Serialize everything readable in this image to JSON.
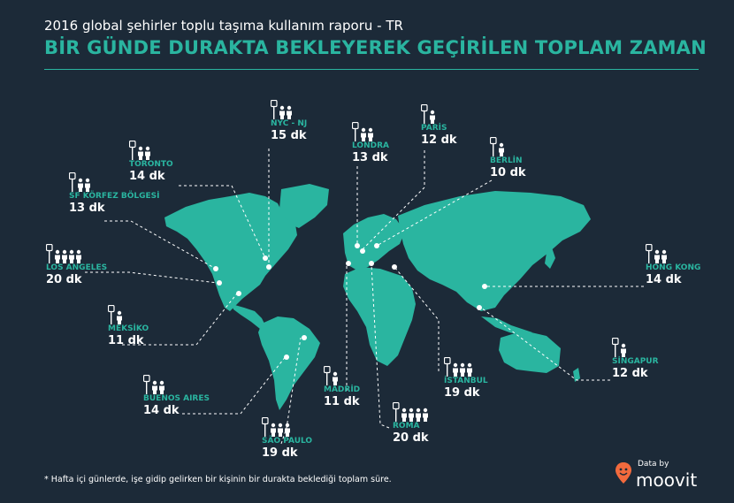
{
  "header": {
    "subtitle": "2016 global şehirler toplu taşıma kullanım raporu - TR",
    "title": "BİR GÜNDE DURAKTA BEKLEYEREK GEÇİRİLEN TOPLAM ZAMAN"
  },
  "colors": {
    "background": "#1c2a38",
    "accent": "#2ab5a0",
    "text": "#ffffff"
  },
  "cities": [
    {
      "id": "nyc",
      "name": "NYC - NJ",
      "time": "15 dk",
      "people": 2
    },
    {
      "id": "londra",
      "name": "LONDRA",
      "time": "13 dk",
      "people": 2
    },
    {
      "id": "paris",
      "name": "PARİS",
      "time": "12 dk",
      "people": 1
    },
    {
      "id": "berlin",
      "name": "BERLİN",
      "time": "10 dk",
      "people": 1
    },
    {
      "id": "toronto",
      "name": "TORONTO",
      "time": "14 dk",
      "people": 2
    },
    {
      "id": "sf",
      "name": "SF KÖRFEZ BÖLGESİ",
      "time": "13 dk",
      "people": 2
    },
    {
      "id": "la",
      "name": "LOS ANGELES",
      "time": "20 dk",
      "people": 4
    },
    {
      "id": "meksiko",
      "name": "MEKSİKO",
      "time": "11 dk",
      "people": 1
    },
    {
      "id": "buenos",
      "name": "BUENOS AIRES",
      "time": "14 dk",
      "people": 2
    },
    {
      "id": "saopaulo",
      "name": "SÃO PAULO",
      "time": "19 dk",
      "people": 3
    },
    {
      "id": "madrid",
      "name": "MADRİD",
      "time": "11 dk",
      "people": 1
    },
    {
      "id": "roma",
      "name": "ROMA",
      "time": "20 dk",
      "people": 4
    },
    {
      "id": "istanbul",
      "name": "İSTANBUL",
      "time": "19 dk",
      "people": 3
    },
    {
      "id": "hongkong",
      "name": "HONG KONG",
      "time": "14 dk",
      "people": 2
    },
    {
      "id": "singapur",
      "name": "SİNGAPUR",
      "time": "12 dk",
      "people": 1
    }
  ],
  "footnote": "* Hafta içi günlerde, işe gidip gelirken bir kişinin bir durakta beklediği toplam süre.",
  "brand": {
    "by": "Data by",
    "name": "moovit"
  }
}
